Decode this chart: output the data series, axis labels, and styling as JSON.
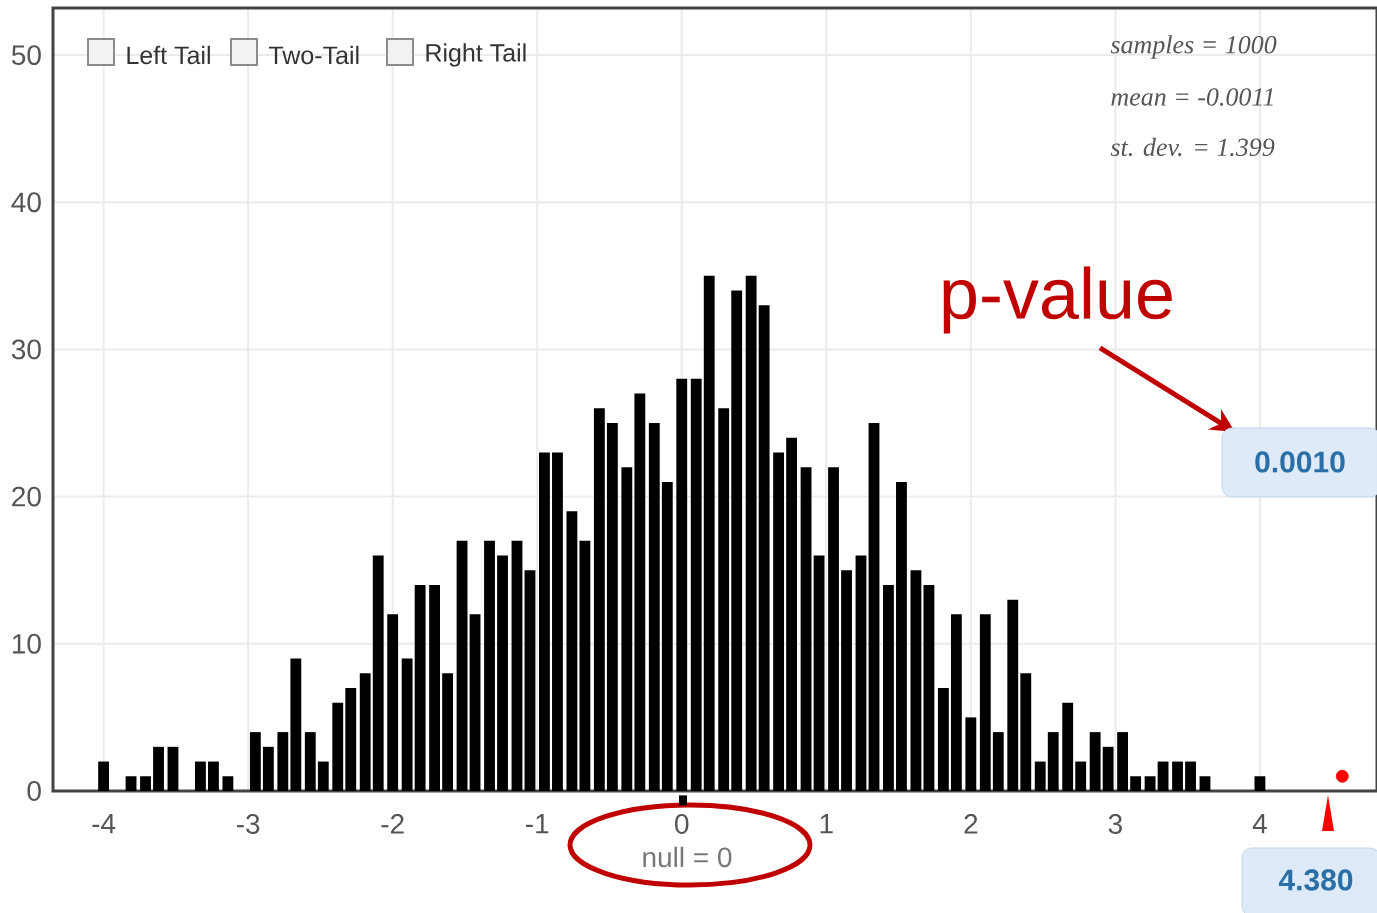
{
  "chart_data": {
    "type": "bar",
    "xlim": [
      -4.35,
      4.81
    ],
    "ylim": [
      0,
      53.2
    ],
    "xticks": [
      -4,
      -3,
      -2,
      -1,
      0,
      1,
      2,
      3,
      4
    ],
    "yticks": [
      0,
      10,
      20,
      30,
      40,
      50
    ],
    "grid": true,
    "series": [
      {
        "color": "#000000",
        "x": [
          -4.0,
          -3.81,
          -3.71,
          -3.62,
          -3.52,
          -3.33,
          -3.24,
          -3.14,
          -2.95,
          -2.86,
          -2.76,
          -2.67,
          -2.57,
          -2.48,
          -2.38,
          -2.29,
          -2.19,
          -2.1,
          -2.0,
          -1.9,
          -1.81,
          -1.71,
          -1.62,
          -1.52,
          -1.43,
          -1.33,
          -1.24,
          -1.14,
          -1.05,
          -0.95,
          -0.86,
          -0.76,
          -0.67,
          -0.57,
          -0.48,
          -0.38,
          -0.29,
          -0.19,
          -0.1,
          0.0,
          0.1,
          0.19,
          0.29,
          0.38,
          0.48,
          0.57,
          0.67,
          0.76,
          0.86,
          0.95,
          1.05,
          1.14,
          1.24,
          1.33,
          1.43,
          1.52,
          1.62,
          1.71,
          1.81,
          1.9,
          2.0,
          2.1,
          2.19,
          2.29,
          2.38,
          2.48,
          2.57,
          2.67,
          2.76,
          2.86,
          2.95,
          3.05,
          3.14,
          3.24,
          3.33,
          3.43,
          3.52,
          3.62,
          4.0
        ],
        "values": [
          2,
          1,
          1,
          3,
          3,
          2,
          2,
          1,
          4,
          3,
          4,
          9,
          4,
          2,
          6,
          7,
          8,
          16,
          12,
          9,
          14,
          14,
          8,
          17,
          12,
          17,
          16,
          17,
          15,
          23,
          23,
          19,
          17,
          26,
          25,
          22,
          27,
          25,
          21,
          28,
          28,
          35,
          26,
          34,
          35,
          33,
          23,
          24,
          22,
          16,
          22,
          15,
          16,
          25,
          14,
          21,
          15,
          14,
          7,
          12,
          5,
          12,
          4,
          13,
          8,
          2,
          4,
          6,
          2,
          4,
          3,
          4,
          1,
          1,
          2,
          2,
          2,
          1,
          1
        ]
      },
      {
        "type": "scatter",
        "color": "#ff0000",
        "x": [
          4.57
        ],
        "values": [
          1
        ]
      }
    ],
    "annotations": [
      "p-value",
      "0.0010",
      "null = 0",
      "samples = 1000",
      "mean = -0.0011",
      "st. dev. = 1.399",
      "Left Tail",
      "Two-Tail",
      "Right Tail",
      "4.380"
    ]
  }
}
